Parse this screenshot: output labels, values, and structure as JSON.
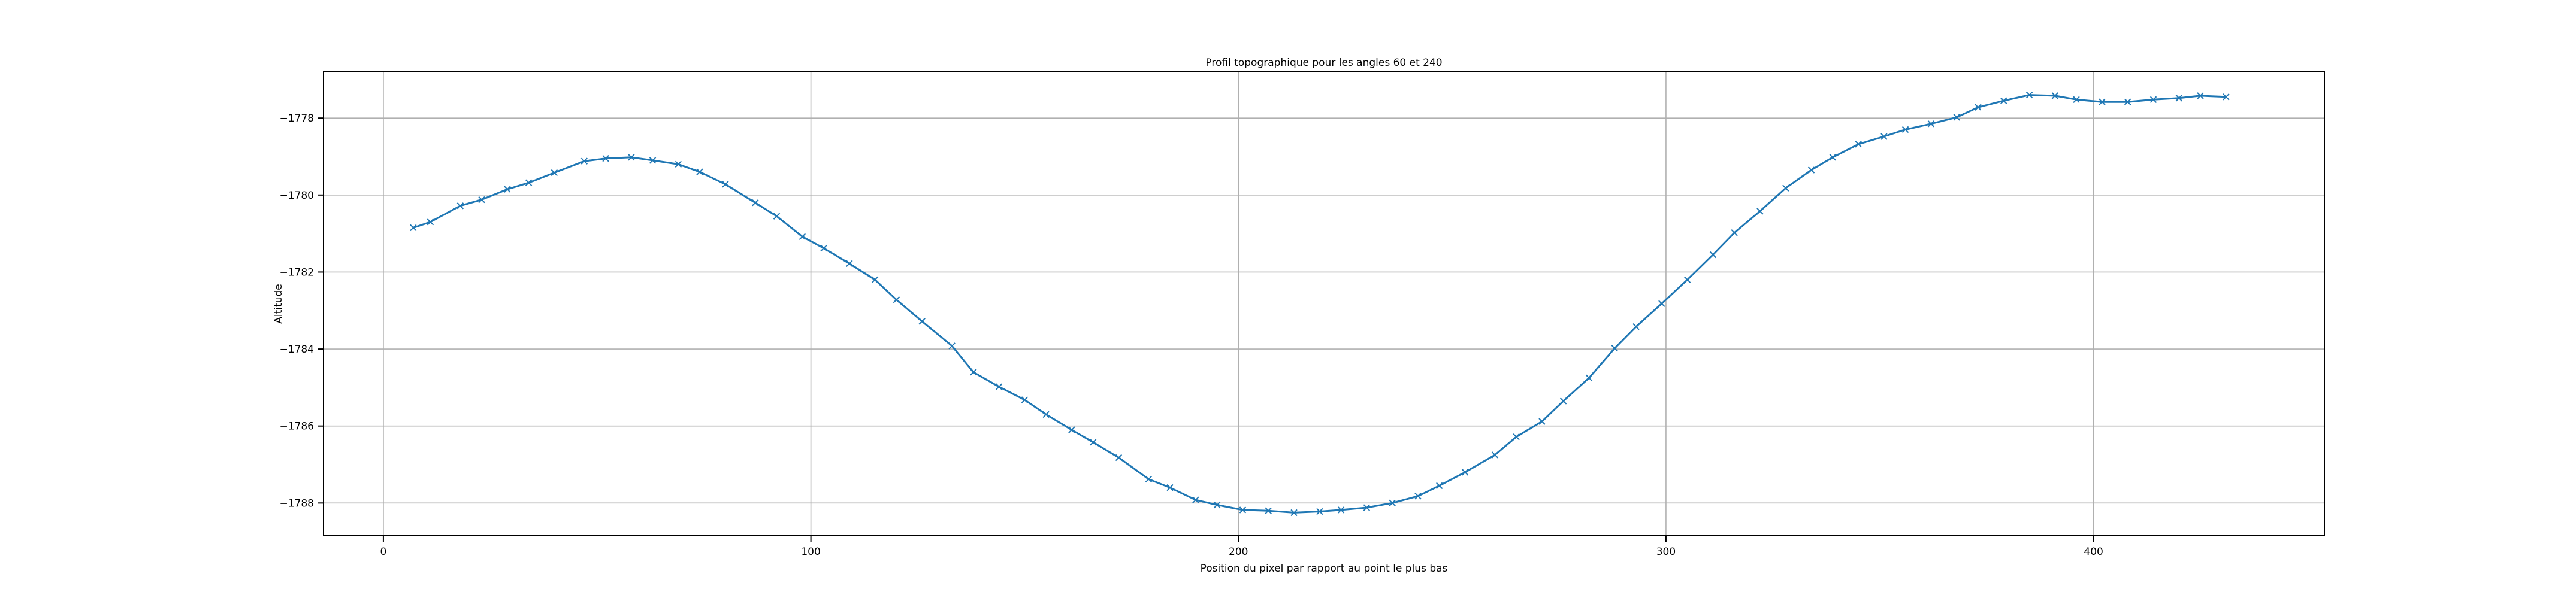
{
  "chart_data": {
    "type": "line",
    "title": "Profil topographique pour les angles 60 et 240",
    "xlabel": "Position du pixel par rapport au point le plus bas",
    "ylabel": "Altitude",
    "xlim": [
      -14,
      454
    ],
    "ylim": [
      -1788.85,
      -1776.8
    ],
    "xticks": [
      0,
      100,
      200,
      300,
      400
    ],
    "yticks": [
      -1788,
      -1786,
      -1784,
      -1782,
      -1780,
      -1778
    ],
    "xtick_labels": [
      "0",
      "100",
      "200",
      "300",
      "400"
    ],
    "ytick_labels": [
      "−1788",
      "−1786",
      "−1784",
      "−1782",
      "−1780",
      "−1778"
    ],
    "grid": true,
    "marker": "x",
    "color": "#1f77b4",
    "series": [
      {
        "x": [
          7,
          11,
          18,
          23,
          29,
          34,
          40,
          47,
          52,
          58,
          63,
          69,
          74,
          80,
          87,
          92,
          98,
          103,
          109,
          115,
          120,
          126,
          133,
          138,
          144,
          150,
          155,
          161,
          166,
          172,
          179,
          184,
          190,
          195,
          201,
          207,
          213,
          219,
          224,
          230,
          236,
          242,
          247,
          253,
          260,
          265,
          271,
          276,
          282,
          288,
          293,
          299,
          305,
          311,
          316,
          322,
          328,
          334,
          339,
          345,
          351,
          356,
          362,
          368,
          373,
          379,
          385,
          391,
          396,
          402,
          408,
          414,
          420,
          425,
          431
        ],
        "y": [
          -1780.85,
          -1780.7,
          -1780.28,
          -1780.12,
          -1779.85,
          -1779.68,
          -1779.42,
          -1779.12,
          -1779.05,
          -1779.02,
          -1779.1,
          -1779.2,
          -1779.4,
          -1779.72,
          -1780.2,
          -1780.55,
          -1781.08,
          -1781.38,
          -1781.78,
          -1782.2,
          -1782.72,
          -1783.28,
          -1783.92,
          -1784.6,
          -1784.98,
          -1785.32,
          -1785.7,
          -1786.1,
          -1786.42,
          -1786.82,
          -1787.38,
          -1787.6,
          -1787.92,
          -1788.05,
          -1788.18,
          -1788.2,
          -1788.25,
          -1788.22,
          -1788.18,
          -1788.12,
          -1788.0,
          -1787.82,
          -1787.55,
          -1787.2,
          -1786.75,
          -1786.28,
          -1785.88,
          -1785.35,
          -1784.75,
          -1783.98,
          -1783.42,
          -1782.82,
          -1782.2,
          -1781.55,
          -1780.98,
          -1780.42,
          -1779.82,
          -1779.35,
          -1779.02,
          -1778.68,
          -1778.48,
          -1778.3,
          -1778.15,
          -1777.98,
          -1777.72,
          -1777.55,
          -1777.4,
          -1777.42,
          -1777.52,
          -1777.58,
          -1777.58,
          -1777.52,
          -1777.48,
          -1777.42,
          -1777.45
        ]
      }
    ]
  }
}
